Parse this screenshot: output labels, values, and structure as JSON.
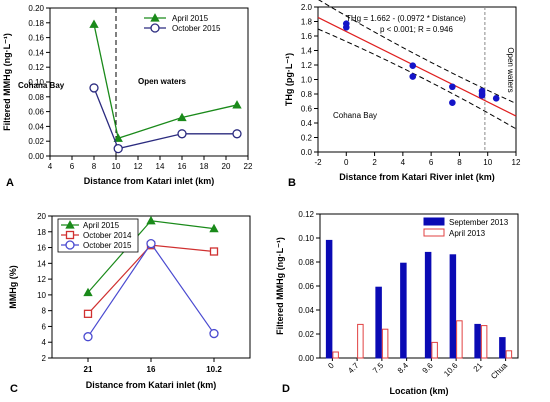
{
  "chart_data": [
    {
      "panel": "A",
      "type": "line",
      "xlabel": "Distance from Katari inlet (km)",
      "ylabel": "Filtered MMHg (ng·L⁻¹)",
      "xlim": [
        4,
        22
      ],
      "ylim": [
        0,
        0.2
      ],
      "xticks": [
        4,
        6,
        8,
        10,
        12,
        14,
        16,
        18,
        20,
        22
      ],
      "yticks": [
        0,
        0.02,
        0.04,
        0.06,
        0.08,
        0.1,
        0.12,
        0.14,
        0.16,
        0.18,
        0.2
      ],
      "ytick_labels": [
        "0.00",
        "0.02",
        "0.04",
        "0.06",
        "0.08",
        "0.10",
        "0.12",
        "0.14",
        "0.16",
        "0.18",
        "0.20"
      ],
      "series": [
        {
          "name": "April 2015",
          "color": "#1a8a1a",
          "marker": "triangle",
          "x": [
            8,
            10.2,
            16,
            21
          ],
          "y": [
            0.178,
            0.024,
            0.052,
            0.069
          ]
        },
        {
          "name": "October 2015",
          "color": "#2b2b7f",
          "marker": "circle-open",
          "x": [
            8,
            10.2,
            16,
            21
          ],
          "y": [
            0.092,
            0.01,
            0.03,
            0.03
          ]
        }
      ],
      "vline": 10,
      "annotations": [
        "Cohana Bay",
        "Open waters"
      ],
      "legend_position": "top-right"
    },
    {
      "panel": "B",
      "type": "scatter",
      "xlabel": "Distance from Katari River inlet (km)",
      "ylabel": "THg (pg·L⁻¹)",
      "xlim": [
        -2,
        12
      ],
      "ylim": [
        0,
        2
      ],
      "xticks": [
        -2,
        0,
        2,
        4,
        6,
        8,
        10,
        12
      ],
      "yticks": [
        0,
        0.2,
        0.4,
        0.6,
        0.8,
        1,
        1.2,
        1.4,
        1.6,
        1.8,
        2
      ],
      "ytick_labels": [
        "0.0",
        "0.2",
        "0.4",
        "0.6",
        "0.8",
        "1.0",
        "1.2",
        "1.4",
        "1.6",
        "1.8",
        "2.0"
      ],
      "points": {
        "x": [
          0,
          0,
          4.7,
          4.7,
          7.5,
          7.5,
          9.6,
          9.6,
          9.6,
          10.6
        ],
        "y": [
          1.72,
          1.77,
          1.19,
          1.04,
          0.9,
          0.68,
          0.84,
          0.8,
          0.78,
          0.74
        ]
      },
      "regression": {
        "intercept": 1.662,
        "slope": -0.0972,
        "ci_upper_0": 1.85,
        "ci_upper_12": 0.62,
        "ci_lower_0": 1.55,
        "ci_lower_12": 0.37
      },
      "vline": 9.8,
      "equation": "THg = 1.662 - (0.0972 * Distance)",
      "stats": "p < 0.001; R = 0.946",
      "annotations": [
        "Cohana Bay",
        "Open waters"
      ]
    },
    {
      "panel": "C",
      "type": "line",
      "xlabel": "Distance from Katari inlet (km)",
      "ylabel": "MMHg (%)",
      "categories": [
        "21",
        "16",
        "10.2"
      ],
      "ylim": [
        2,
        20
      ],
      "yticks": [
        2,
        4,
        6,
        8,
        10,
        12,
        14,
        16,
        18,
        20
      ],
      "series": [
        {
          "name": "April 2015",
          "color": "#1a8a1a",
          "marker": "triangle",
          "values": [
            10.3,
            19.4,
            18.4
          ]
        },
        {
          "name": "October 2014",
          "color": "#d03030",
          "marker": "square-open",
          "values": [
            7.6,
            16.3,
            15.5
          ]
        },
        {
          "name": "October 2015",
          "color": "#4a4ad0",
          "marker": "circle-open",
          "values": [
            4.7,
            16.5,
            5.1
          ]
        }
      ],
      "legend_position": "top-left"
    },
    {
      "panel": "D",
      "type": "bar",
      "xlabel": "Location (km)",
      "ylabel": "Filtered MMHg (ng·L⁻¹)",
      "categories": [
        "0",
        "4.7",
        "7.5",
        "8.4",
        "9.6",
        "10.6",
        "21",
        "Chua"
      ],
      "ylim": [
        0,
        0.12
      ],
      "yticks": [
        0,
        0.02,
        0.04,
        0.06,
        0.08,
        0.1,
        0.12
      ],
      "ytick_labels": [
        "0.00",
        "0.02",
        "0.04",
        "0.06",
        "0.08",
        "0.10",
        "0.12"
      ],
      "series": [
        {
          "name": "September 2013",
          "color": "#0a0ab4",
          "fill": true,
          "values": [
            0.098,
            0,
            0.059,
            0.079,
            0.088,
            0.086,
            0.028,
            0.017
          ]
        },
        {
          "name": "April 2013",
          "color": "#e04040",
          "fill": false,
          "values": [
            0.005,
            0.028,
            0.024,
            0,
            0.013,
            0.031,
            0.027,
            0.006
          ]
        }
      ],
      "legend_position": "top-right"
    }
  ]
}
